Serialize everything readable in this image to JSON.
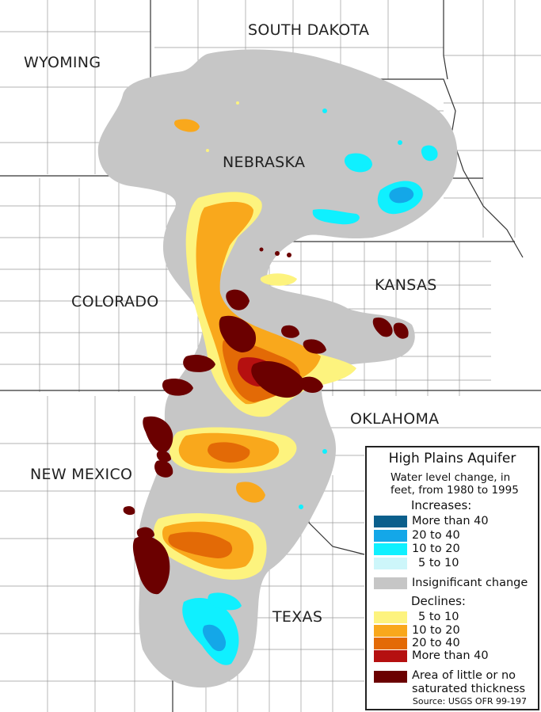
{
  "states": {
    "wyoming": "WYOMING",
    "south_dakota": "SOUTH DAKOTA",
    "nebraska": "NEBRASKA",
    "kansas": "KANSAS",
    "colorado": "COLORADO",
    "oklahoma": "OKLAHOMA",
    "new_mexico": "NEW MEXICO",
    "texas": "TEXAS"
  },
  "legend": {
    "title": "High Plains Aquifer",
    "subtitle": "Water level change, in feet, from 1980 to 1995",
    "increases_heading": "Increases:",
    "increases": [
      {
        "label": "More than 40",
        "color": "#0a5f8c"
      },
      {
        "label": "20 to 40",
        "color": "#14a7e8"
      },
      {
        "label": "10 to 20",
        "color": "#0ff0ff"
      },
      {
        "label": "5 to 10",
        "color": "#cdf6fa"
      }
    ],
    "insignificant": {
      "label": "Insignificant change",
      "color": "#c6c6c6"
    },
    "declines_heading": "Declines:",
    "declines": [
      {
        "label": "5 to 10",
        "color": "#fdf37e"
      },
      {
        "label": "10 to 20",
        "color": "#f9a81c"
      },
      {
        "label": "20 to 40",
        "color": "#e36a06"
      },
      {
        "label": "More than 40",
        "color": "#b51010"
      }
    ],
    "no_saturated": {
      "label_line1": "Area of little or no",
      "label_line2": "saturated thickness",
      "color": "#6b0000"
    },
    "source": "Source: USGS OFR 99-197"
  }
}
